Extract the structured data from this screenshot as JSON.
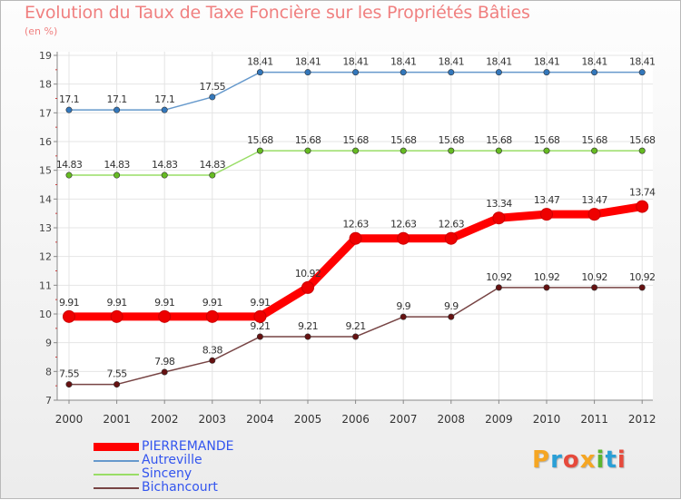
{
  "title": "Evolution du Taux de Taxe Foncière sur les Propriétés Bâties",
  "unit_label": "(en %)",
  "logo_text": "Proxiti",
  "chart_data": {
    "type": "line",
    "title": "Evolution du Taux de Taxe Foncière sur les Propriétés Bâties",
    "ylabel": "(en %)",
    "xlabel": "",
    "x": [
      "2000",
      "2001",
      "2002",
      "2003",
      "2004",
      "2005",
      "2006",
      "2007",
      "2008",
      "2009",
      "2010",
      "2011",
      "2012"
    ],
    "ylim": [
      7,
      19
    ],
    "yticks": [
      7,
      8,
      9,
      10,
      11,
      12,
      13,
      14,
      15,
      16,
      17,
      18,
      19
    ],
    "grid": true,
    "legend_position": "bottom-left",
    "series": [
      {
        "name": "PIERREMANDE",
        "color": "#ff0000",
        "marker_color": "#ee0000",
        "values": [
          9.91,
          9.91,
          9.91,
          9.91,
          9.91,
          10.92,
          12.63,
          12.63,
          12.63,
          13.34,
          13.47,
          13.47,
          13.74
        ],
        "labels": [
          "9.91",
          "9.91",
          "9.91",
          "9.91",
          "9.91",
          "10.92",
          "12.63",
          "12.63",
          "12.63",
          "13.34",
          "13.47",
          "13.47",
          "13.74"
        ]
      },
      {
        "name": "Autreville",
        "color": "#6699cc",
        "marker_color": "#3377bb",
        "values": [
          17.1,
          17.1,
          17.1,
          17.55,
          18.41,
          18.41,
          18.41,
          18.41,
          18.41,
          18.41,
          18.41,
          18.41,
          18.41
        ],
        "labels": [
          "17.1",
          "17.1",
          "17.1",
          "17.55",
          "18.41",
          "18.41",
          "18.41",
          "18.41",
          "18.41",
          "18.41",
          "18.41",
          "18.41",
          "18.41"
        ]
      },
      {
        "name": "Sinceny",
        "color": "#99dd66",
        "marker_color": "#66bb22",
        "values": [
          14.83,
          14.83,
          14.83,
          14.83,
          15.68,
          15.68,
          15.68,
          15.68,
          15.68,
          15.68,
          15.68,
          15.68,
          15.68
        ],
        "labels": [
          "14.83",
          "14.83",
          "14.83",
          "14.83",
          "15.68",
          "15.68",
          "15.68",
          "15.68",
          "15.68",
          "15.68",
          "15.68",
          "15.68",
          "15.68"
        ]
      },
      {
        "name": "Bichancourt",
        "color": "#774444",
        "marker_color": "#661111",
        "values": [
          7.55,
          7.55,
          7.98,
          8.38,
          9.21,
          9.21,
          9.21,
          9.9,
          9.9,
          10.92,
          10.92,
          10.92,
          10.92
        ],
        "labels": [
          "7.55",
          "7.55",
          "7.98",
          "8.38",
          "9.21",
          "9.21",
          "9.21",
          "9.9",
          "9.9",
          "10.92",
          "10.92",
          "10.92",
          "10.92"
        ]
      }
    ]
  }
}
